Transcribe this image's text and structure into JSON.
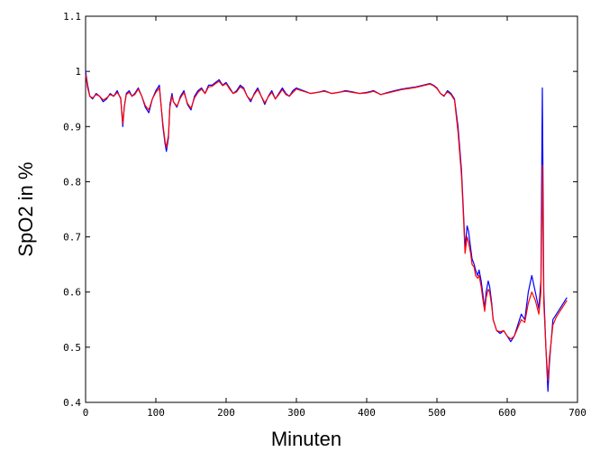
{
  "chart_data": {
    "type": "line",
    "xlabel": "Minuten",
    "ylabel": "SpO2 in %",
    "xlim": [
      0,
      700
    ],
    "ylim": [
      0.4,
      1.1
    ],
    "xticks": [
      0,
      100,
      200,
      300,
      400,
      500,
      600,
      700
    ],
    "yticks": [
      0.4,
      0.5,
      0.6,
      0.7,
      0.8,
      0.9,
      1,
      1.1
    ],
    "xtick_labels": [
      "0",
      "100",
      "200",
      "300",
      "400",
      "500",
      "600",
      "700"
    ],
    "ytick_labels": [
      "0.4",
      "0.5",
      "0.6",
      "0.7",
      "0.8",
      "0.9",
      "1",
      "1.1"
    ],
    "grid": false,
    "series": [
      {
        "color": "#0000ff",
        "x": [
          0,
          3,
          6,
          10,
          15,
          20,
          25,
          30,
          35,
          40,
          45,
          50,
          53,
          55,
          58,
          62,
          66,
          70,
          75,
          80,
          85,
          90,
          95,
          100,
          105,
          110,
          113,
          115,
          118,
          120,
          123,
          125,
          130,
          135,
          140,
          145,
          150,
          155,
          160,
          165,
          170,
          175,
          180,
          185,
          190,
          195,
          200,
          205,
          210,
          215,
          220,
          225,
          230,
          235,
          240,
          245,
          250,
          255,
          260,
          265,
          270,
          275,
          280,
          285,
          290,
          295,
          300,
          310,
          320,
          330,
          340,
          350,
          360,
          370,
          380,
          390,
          400,
          410,
          420,
          430,
          440,
          450,
          460,
          470,
          480,
          490,
          495,
          500,
          505,
          510,
          515,
          520,
          525,
          530,
          535,
          538,
          540,
          543,
          545,
          548,
          550,
          553,
          555,
          558,
          560,
          563,
          565,
          568,
          570,
          573,
          575,
          578,
          580,
          585,
          590,
          595,
          600,
          605,
          610,
          615,
          620,
          625,
          630,
          635,
          640,
          645,
          648,
          650,
          652,
          655,
          658,
          660,
          665,
          670,
          675,
          680,
          685
        ],
        "y": [
          1.0,
          0.975,
          0.955,
          0.95,
          0.96,
          0.955,
          0.945,
          0.95,
          0.96,
          0.955,
          0.965,
          0.95,
          0.9,
          0.935,
          0.96,
          0.965,
          0.955,
          0.96,
          0.97,
          0.955,
          0.935,
          0.925,
          0.95,
          0.965,
          0.975,
          0.9,
          0.87,
          0.855,
          0.88,
          0.94,
          0.96,
          0.945,
          0.935,
          0.955,
          0.965,
          0.94,
          0.93,
          0.955,
          0.965,
          0.97,
          0.96,
          0.975,
          0.975,
          0.98,
          0.985,
          0.975,
          0.98,
          0.97,
          0.96,
          0.965,
          0.975,
          0.97,
          0.955,
          0.945,
          0.96,
          0.97,
          0.955,
          0.94,
          0.955,
          0.965,
          0.95,
          0.96,
          0.97,
          0.96,
          0.955,
          0.965,
          0.97,
          0.965,
          0.96,
          0.962,
          0.965,
          0.96,
          0.962,
          0.965,
          0.963,
          0.96,
          0.962,
          0.965,
          0.958,
          0.962,
          0.965,
          0.968,
          0.97,
          0.972,
          0.975,
          0.978,
          0.975,
          0.97,
          0.96,
          0.955,
          0.965,
          0.96,
          0.95,
          0.9,
          0.82,
          0.74,
          0.68,
          0.72,
          0.71,
          0.68,
          0.66,
          0.65,
          0.64,
          0.63,
          0.64,
          0.62,
          0.6,
          0.57,
          0.6,
          0.62,
          0.61,
          0.58,
          0.55,
          0.53,
          0.525,
          0.53,
          0.52,
          0.51,
          0.52,
          0.54,
          0.56,
          0.55,
          0.6,
          0.63,
          0.6,
          0.57,
          0.62,
          0.97,
          0.6,
          0.5,
          0.42,
          0.47,
          0.55,
          0.56,
          0.57,
          0.58,
          0.59
        ]
      },
      {
        "color": "#ff0000",
        "x": [
          0,
          3,
          6,
          10,
          15,
          20,
          25,
          30,
          35,
          40,
          45,
          50,
          53,
          55,
          58,
          62,
          66,
          70,
          75,
          80,
          85,
          90,
          95,
          100,
          105,
          110,
          113,
          115,
          118,
          120,
          123,
          125,
          130,
          135,
          140,
          145,
          150,
          155,
          160,
          165,
          170,
          175,
          180,
          185,
          190,
          195,
          200,
          205,
          210,
          215,
          220,
          225,
          230,
          235,
          240,
          245,
          250,
          255,
          260,
          265,
          270,
          275,
          280,
          285,
          290,
          295,
          300,
          310,
          320,
          330,
          340,
          350,
          360,
          370,
          380,
          390,
          400,
          410,
          420,
          430,
          440,
          450,
          460,
          470,
          480,
          490,
          495,
          500,
          505,
          510,
          515,
          520,
          525,
          530,
          535,
          538,
          540,
          543,
          545,
          548,
          550,
          553,
          555,
          558,
          560,
          563,
          565,
          568,
          570,
          573,
          575,
          578,
          580,
          585,
          590,
          595,
          600,
          605,
          610,
          615,
          620,
          625,
          630,
          635,
          640,
          645,
          648,
          650,
          652,
          655,
          658,
          660,
          665,
          670,
          675,
          680,
          685
        ],
        "y": [
          0.995,
          0.97,
          0.955,
          0.952,
          0.958,
          0.955,
          0.948,
          0.952,
          0.958,
          0.955,
          0.962,
          0.952,
          0.905,
          0.935,
          0.958,
          0.962,
          0.955,
          0.958,
          0.968,
          0.955,
          0.938,
          0.93,
          0.95,
          0.962,
          0.97,
          0.905,
          0.875,
          0.862,
          0.885,
          0.935,
          0.955,
          0.945,
          0.937,
          0.952,
          0.962,
          0.942,
          0.933,
          0.952,
          0.962,
          0.968,
          0.96,
          0.972,
          0.973,
          0.978,
          0.982,
          0.974,
          0.978,
          0.968,
          0.96,
          0.963,
          0.972,
          0.968,
          0.955,
          0.948,
          0.958,
          0.967,
          0.955,
          0.943,
          0.954,
          0.962,
          0.95,
          0.958,
          0.967,
          0.958,
          0.955,
          0.962,
          0.968,
          0.964,
          0.96,
          0.962,
          0.964,
          0.96,
          0.962,
          0.964,
          0.962,
          0.96,
          0.961,
          0.964,
          0.958,
          0.961,
          0.964,
          0.967,
          0.969,
          0.971,
          0.974,
          0.977,
          0.974,
          0.969,
          0.96,
          0.956,
          0.963,
          0.958,
          0.948,
          0.89,
          0.81,
          0.73,
          0.67,
          0.7,
          0.69,
          0.67,
          0.65,
          0.645,
          0.63,
          0.625,
          0.63,
          0.61,
          0.59,
          0.565,
          0.59,
          0.605,
          0.6,
          0.575,
          0.55,
          0.53,
          0.528,
          0.53,
          0.52,
          0.515,
          0.52,
          0.535,
          0.55,
          0.545,
          0.58,
          0.6,
          0.585,
          0.56,
          0.6,
          0.83,
          0.58,
          0.5,
          0.44,
          0.48,
          0.54,
          0.555,
          0.565,
          0.575,
          0.585
        ]
      }
    ]
  }
}
